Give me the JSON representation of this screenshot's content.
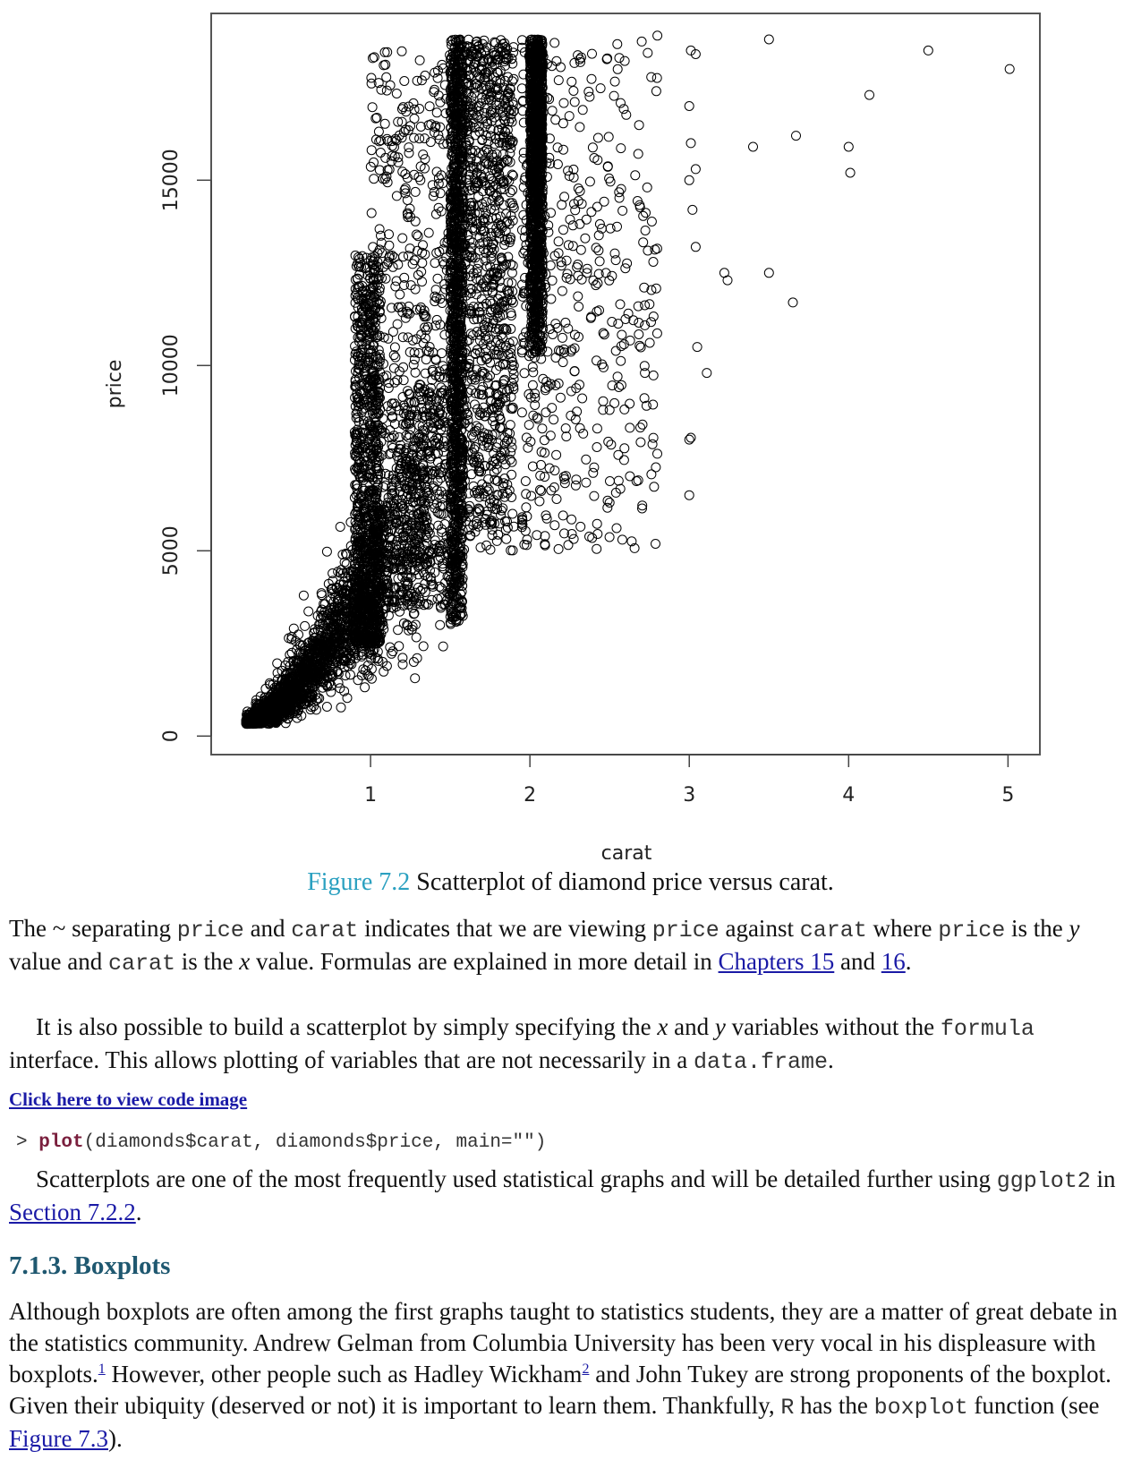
{
  "chart_data": {
    "type": "scatter",
    "xlabel": "carat",
    "ylabel": "price",
    "xlim": [
      0.0,
      5.2
    ],
    "ylim": [
      -500,
      19500
    ],
    "x_ticks": [
      "1",
      "2",
      "3",
      "4",
      "5"
    ],
    "y_ticks": [
      "0",
      "5000",
      "10000",
      "15000"
    ],
    "outliers": [
      {
        "x": 4.5,
        "y": 18500
      },
      {
        "x": 5.01,
        "y": 18000
      },
      {
        "x": 3.5,
        "y": 18800
      },
      {
        "x": 4.13,
        "y": 17300
      },
      {
        "x": 3.4,
        "y": 15900
      },
      {
        "x": 3.67,
        "y": 16200
      },
      {
        "x": 4.0,
        "y": 15900
      },
      {
        "x": 4.01,
        "y": 15200
      },
      {
        "x": 3.22,
        "y": 12500
      },
      {
        "x": 3.24,
        "y": 12300
      },
      {
        "x": 3.5,
        "y": 12500
      },
      {
        "x": 3.65,
        "y": 11700
      },
      {
        "x": 3.0,
        "y": 8000
      },
      {
        "x": 3.01,
        "y": 8050
      },
      {
        "x": 3.0,
        "y": 6500
      },
      {
        "x": 3.11,
        "y": 9800
      },
      {
        "x": 3.05,
        "y": 10500
      },
      {
        "x": 3.04,
        "y": 13200
      },
      {
        "x": 3.02,
        "y": 14200
      },
      {
        "x": 3.0,
        "y": 15000
      },
      {
        "x": 3.04,
        "y": 15300
      },
      {
        "x": 3.01,
        "y": 16000
      },
      {
        "x": 3.0,
        "y": 17000
      },
      {
        "x": 3.01,
        "y": 18500
      },
      {
        "x": 3.04,
        "y": 18400
      },
      {
        "x": 2.8,
        "y": 18900
      },
      {
        "x": 2.5,
        "y": 8800
      },
      {
        "x": 2.5,
        "y": 6300
      },
      {
        "x": 2.68,
        "y": 6900
      },
      {
        "x": 2.55,
        "y": 9700
      },
      {
        "x": 2.74,
        "y": 13100
      },
      {
        "x": 2.68,
        "y": 11600
      }
    ],
    "scatter_seed": 42
  },
  "caption": {
    "number": "Figure 7.2",
    "text": " Scatterplot of diamond price versus carat."
  },
  "para1": {
    "t1": "The ~ separating ",
    "c1": "price",
    "t2": " and ",
    "c2": "carat",
    "t3": " indicates that we are viewing ",
    "c3": "price",
    "t4": " against ",
    "c4": "carat",
    "t5": " where ",
    "c5": "price",
    "t6": " is the ",
    "y": "y",
    "t7": " value and ",
    "c6": "carat",
    "t8": " is the ",
    "x": "x",
    "t9": " value. Formulas are explained in more detail in ",
    "link1": "Chapters 15",
    "t10": " and ",
    "link2": "16",
    "t11": "."
  },
  "para2": {
    "t1": "It is also possible to build a scatterplot by simply specifying the ",
    "x": "x",
    "t2": " and ",
    "y": "y",
    "t3": " variables without the ",
    "c1": "formula",
    "t4": " interface. This allows plotting of variables that are not necessarily in a ",
    "c2": "data.frame",
    "t5": "."
  },
  "code_link": "Click here to view code image",
  "code": {
    "prompt": "> ",
    "fn": "plot",
    "args": "(diamonds$carat, diamonds$price, main=\"\")"
  },
  "para3": {
    "t1": "Scatterplots are one of the most frequently used statistical graphs and will be detailed further using ",
    "c1": "ggplot2",
    "t2": " in ",
    "link": "Section 7.2.2",
    "t3": "."
  },
  "section_heading": "7.1.3. Boxplots",
  "para4": {
    "t1": "Although boxplots are often among the first graphs taught to statistics students, they are a matter of great debate in the statistics community. Andrew Gelman from Columbia University has been very vocal in his displeasure with boxplots.",
    "fn1": "1",
    "t2": " However, other people such as Hadley Wickham",
    "fn2": "2",
    "t3": " and John Tukey are strong proponents of the boxplot. Given their ubiquity (deserved or not) it is important to learn them. Thankfully, ",
    "r": "R",
    "t4": " has the ",
    "c1": "boxplot",
    "t5": " function (see ",
    "link": "Figure 7.3",
    "t6": ")."
  }
}
